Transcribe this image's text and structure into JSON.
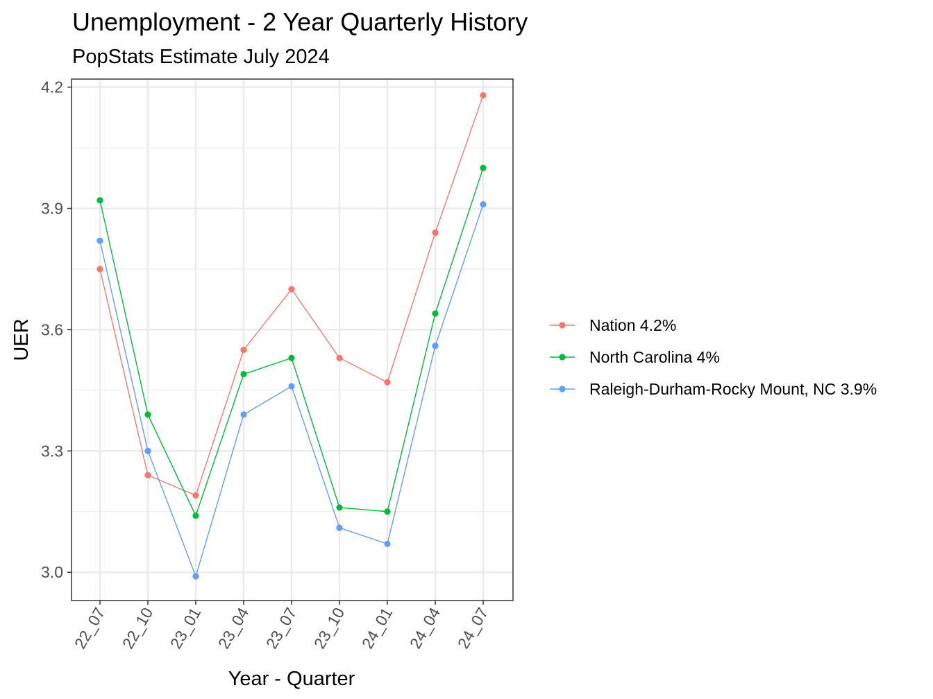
{
  "chart_data": {
    "type": "line",
    "title": "Unemployment - 2 Year Quarterly History",
    "subtitle": "PopStats Estimate July 2024",
    "xlabel": "Year - Quarter",
    "ylabel": "UER",
    "categories": [
      "22_07",
      "22_10",
      "23_01",
      "23_04",
      "23_07",
      "23_10",
      "24_01",
      "24_04",
      "24_07"
    ],
    "ylim": [
      2.93,
      4.22
    ],
    "yticks": [
      3.0,
      3.3,
      3.6,
      3.9,
      4.2
    ],
    "ytick_labels": [
      "3.0",
      "3.3",
      "3.6",
      "3.9",
      "4.2"
    ],
    "grid": true,
    "legend_position": "right",
    "series": [
      {
        "name": "Nation 4.2%",
        "color": "#F8766D",
        "values": [
          3.75,
          3.24,
          3.19,
          3.55,
          3.7,
          3.53,
          3.47,
          3.84,
          4.18
        ]
      },
      {
        "name": "North Carolina 4%",
        "color": "#00BA38",
        "values": [
          3.92,
          3.39,
          3.14,
          3.49,
          3.53,
          3.16,
          3.15,
          3.64,
          4.0
        ]
      },
      {
        "name": "Raleigh-Durham-Rocky Mount, NC 3.9%",
        "color": "#619CFF",
        "values": [
          3.82,
          3.3,
          2.99,
          3.39,
          3.46,
          3.11,
          3.07,
          3.56,
          3.91
        ]
      }
    ]
  }
}
